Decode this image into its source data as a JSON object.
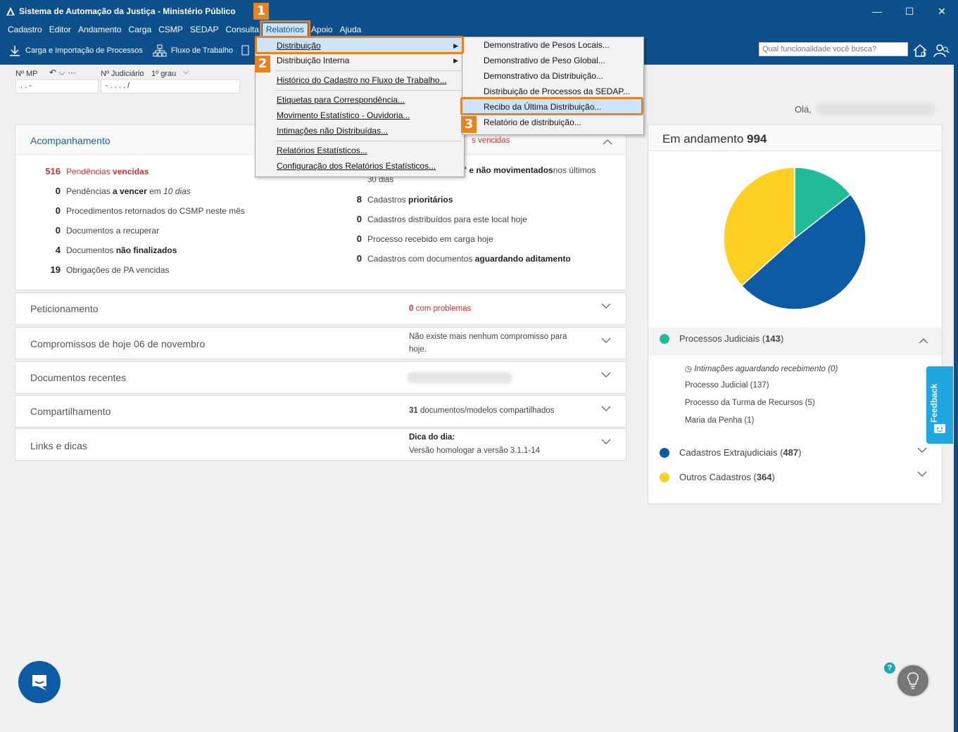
{
  "window": {
    "title": "Sistema de Automação da Justiça - Ministério Público",
    "minimize": "—",
    "maximize": "☐",
    "close": "✕"
  },
  "menubar": [
    "Cadastro",
    "Editor",
    "Andamento",
    "Carga",
    "CSMP",
    "SEDAP",
    "Consulta",
    "Relatórios",
    "Apoio",
    "Ajuda"
  ],
  "toolbar": {
    "carga": "Carga e Importação de Processos",
    "fluxo": "Fluxo de Trabalho",
    "search_placeholder": "Qual funcionalidade você busca?"
  },
  "filters": {
    "nmp_label": "Nº MP",
    "nmp_value": ". .     -",
    "njud_label": "Nº Judiciário",
    "grau": "1º grau",
    "njud_value": "-  .  .  .  .     /"
  },
  "greeting": "Olá,",
  "acompanhamento": {
    "title": "Acompanhamento",
    "left": [
      {
        "num": "516",
        "pre": "Pendências ",
        "bold": "vencidas",
        "post": "",
        "red": true
      },
      {
        "num": "0",
        "pre": "Pendências ",
        "bold": "a vencer",
        "post": " em ",
        "ital": "10 dias"
      },
      {
        "num": "0",
        "pre": "Procedimentos retornados do CSMP neste mês",
        "bold": "",
        "post": ""
      },
      {
        "num": "0",
        "pre": "Documentos a recuperar",
        "bold": "",
        "post": ""
      },
      {
        "num": "4",
        "pre": "Documentos ",
        "bold": "não finalizados",
        "post": ""
      },
      {
        "num": "19",
        "pre": "Obrigações de PA vencidas",
        "bold": "",
        "post": ""
      }
    ],
    "right_top_red": "s vencidas",
    "right_line1_bold": "o\" e não movimentados",
    "right_line1_post": " nos últimos",
    "right_line1_cont": "30 dias",
    "right": [
      {
        "num": "8",
        "pre": "Cadastros ",
        "bold": "prioritários",
        "post": ""
      },
      {
        "num": "0",
        "pre": "Cadastros distribuídos para este local hoje",
        "bold": "",
        "post": ""
      },
      {
        "num": "0",
        "pre": "Processo recebido em carga hoje",
        "bold": "",
        "post": ""
      },
      {
        "num": "0",
        "pre": "Cadastros com documentos ",
        "bold": "aguardando aditamento",
        "post": ""
      }
    ]
  },
  "panels": {
    "peticionamento": {
      "title": "Peticionamento",
      "num": "0",
      "info": " com problemas"
    },
    "compromissos": {
      "title": "Compromissos de hoje 06 de novembro",
      "info1": "Não existe mais nenhum compromisso para",
      "info2": "hoje."
    },
    "documentos": {
      "title": "Documentos recentes"
    },
    "compartilhamento": {
      "title": "Compartilhamento",
      "num": "31",
      "info": " documentos/modelos compartilhados"
    },
    "links": {
      "title": "Links e dicas",
      "dica_label": "Dica do dia:",
      "dica_text": "Versão homologar a versão 3.1.1-14"
    }
  },
  "side": {
    "title_pre": "Em andamento ",
    "title_num": "994",
    "legend": [
      {
        "label": "Processos Judiciais",
        "count": "143",
        "color": "#22bb99"
      },
      {
        "label": "Cadastros Extrajudiciais",
        "count": "487",
        "color": "#0d5aa5"
      },
      {
        "label": "Outros Cadastros",
        "count": "364",
        "color": "#fdd023"
      }
    ],
    "sub_items": [
      "Intimações aguardando recebimento (0)",
      "Processo Judicial (137)",
      "Processo da Turma de Recursos (5)",
      "Maria da Penha (1)"
    ]
  },
  "chart_data": {
    "type": "pie",
    "categories": [
      "Processos Judiciais",
      "Cadastros Extrajudiciais",
      "Outros Cadastros"
    ],
    "values": [
      143,
      487,
      364
    ],
    "colors": [
      "#22bb99",
      "#0d5aa5",
      "#fdd023"
    ]
  },
  "menu_relatorios": [
    {
      "label": "Distribuição",
      "u": "D",
      "arrow": true
    },
    {
      "label": "Distribuição Interna",
      "u": "",
      "arrow": true
    },
    {
      "label": "Histórico do Cadastro no Fluxo de Trabalho...",
      "u": "H"
    },
    {
      "label": "Etiquetas para Correspondência...",
      "u": "E"
    },
    {
      "label": "Movimento Estatístico - Ouvidoria...",
      "u": "M"
    },
    {
      "label": "Intimações não Distribuídas...",
      "u": "I"
    },
    {
      "label": "Relatórios Estatísticos...",
      "u": "R"
    },
    {
      "label": "Configuração dos Relatórios Estatísticos...",
      "u": "C"
    }
  ],
  "submenu_distribuicao": [
    "Demonstrativo de Pesos Locais...",
    "Demonstrativo de Peso Global...",
    "Demonstrativo da Distribuição...",
    "Distribuição de Processos da SEDAP...",
    "Recibo da Última Distribuição...",
    "Relatório de distribuição..."
  ],
  "badges": [
    "1",
    "2",
    "3"
  ],
  "feedback": "Feedback",
  "help": "?"
}
